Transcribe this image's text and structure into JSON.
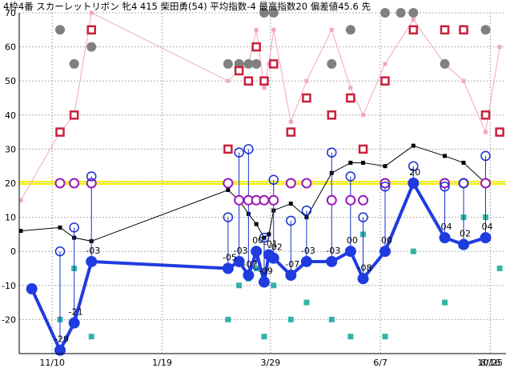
{
  "chart_data": {
    "type": "line",
    "title": "4枠4番 スカーレットリボン 牝4 415 柴田勇(54) 平均指数-4 最高指数20 偏差値45.6 先",
    "xlabel": "",
    "ylabel": "",
    "ylim": [
      -30,
      70
    ],
    "grid": true,
    "y_ticks": [
      "70",
      "60",
      "50",
      "40",
      "30",
      "20",
      "10",
      "0",
      "-10",
      "-20"
    ],
    "x_ticks": [
      "11/10",
      "1/19",
      "3/29",
      "6/7",
      "8/16",
      "10/25"
    ],
    "x_tick_days": [
      0,
      70,
      139,
      209,
      279,
      349
    ],
    "reference_line": 20,
    "main_series": {
      "x": [
        -13,
        5,
        14,
        25,
        112,
        119,
        125,
        130,
        135,
        138,
        141,
        152,
        162,
        178,
        190,
        198,
        212,
        230,
        250,
        262,
        276
      ],
      "y": [
        -11,
        -29,
        -21,
        -3,
        -5,
        -3,
        -7,
        0,
        -9,
        -1,
        -2,
        -7,
        -3,
        -3,
        0,
        -8,
        0,
        20,
        4,
        2,
        4
      ],
      "labels": [
        "",
        "-29",
        "-21",
        "-03",
        "-05",
        "-03",
        "-07",
        "00",
        "-09",
        "-01",
        "-02",
        "-07",
        "-03",
        "-03",
        "00",
        "-08",
        "00",
        "20",
        "04",
        "02",
        "04"
      ]
    },
    "black_series": {
      "x": [
        -20,
        5,
        14,
        25,
        112,
        119,
        125,
        130,
        135,
        138,
        141,
        152,
        162,
        178,
        190,
        198,
        212,
        230,
        250,
        262,
        276
      ],
      "y": [
        6,
        7,
        4,
        3,
        18,
        15,
        11,
        8,
        4,
        5,
        12,
        14,
        10,
        23,
        26,
        26,
        25,
        31,
        28,
        26,
        20
      ]
    },
    "purple_rings": {
      "x": [
        5,
        14,
        25,
        112,
        119,
        125,
        130,
        135,
        141,
        152,
        162,
        178,
        190,
        198,
        212,
        230,
        250,
        262,
        276
      ],
      "y": [
        20,
        20,
        20,
        20,
        15,
        15,
        15,
        15,
        15,
        20,
        20,
        15,
        15,
        15,
        20,
        20,
        20,
        20,
        20
      ]
    },
    "blue_rings": {
      "x": [
        5,
        14,
        25,
        112,
        119,
        125,
        130,
        135,
        141,
        152,
        162,
        178,
        190,
        198,
        212,
        230,
        250,
        262,
        276
      ],
      "y": [
        0,
        7,
        22,
        10,
        29,
        30,
        -4,
        4,
        21,
        9,
        12,
        29,
        22,
        10,
        19,
        25,
        19,
        20,
        28
      ],
      "base": [
        -26,
        -22,
        -4,
        -6,
        -4,
        -8,
        -1,
        -10,
        -3,
        -8,
        -4,
        -4,
        -1,
        -9,
        -1,
        19,
        3,
        1,
        3
      ]
    },
    "gray_dots": {
      "x": [
        5,
        14,
        25,
        112,
        119,
        125,
        130,
        135,
        141,
        178,
        190,
        212,
        222,
        230,
        250,
        262,
        276
      ],
      "y": [
        65,
        55,
        60,
        55,
        55,
        55,
        55,
        70,
        70,
        55,
        65,
        70,
        70,
        70,
        55,
        65,
        65
      ]
    },
    "red_squares": {
      "x": [
        5,
        14,
        25,
        112,
        119,
        125,
        130,
        135,
        141,
        152,
        162,
        178,
        190,
        198,
        212,
        230,
        250,
        262,
        276,
        285
      ],
      "y": [
        35,
        40,
        65,
        30,
        53,
        50,
        60,
        50,
        55,
        35,
        45,
        40,
        45,
        30,
        50,
        65,
        65,
        65,
        40,
        35
      ]
    },
    "pink_series": {
      "x": [
        -20,
        5,
        14,
        25,
        112,
        119,
        125,
        130,
        135,
        138,
        141,
        152,
        162,
        178,
        190,
        198,
        212,
        230,
        250,
        262,
        276,
        285
      ],
      "y": [
        15,
        35,
        40,
        70,
        50,
        53,
        55,
        65,
        48,
        55,
        65,
        38,
        50,
        65,
        48,
        40,
        55,
        68,
        55,
        50,
        35,
        60
      ]
    },
    "teal_squares": {
      "x": [
        5,
        14,
        25,
        112,
        119,
        125,
        130,
        135,
        141,
        152,
        162,
        178,
        190,
        198,
        212,
        230,
        250,
        262,
        276,
        285
      ],
      "y": [
        -20,
        -5,
        -25,
        -20,
        -10,
        -8,
        -5,
        -25,
        -10,
        -20,
        -15,
        -20,
        -25,
        5,
        -25,
        0,
        -15,
        10,
        10,
        -5
      ]
    },
    "colors": {
      "main": "#1f3ce0",
      "rings_blue": "#1a2fd0",
      "rings_purple": "#9a19b8",
      "black": "#000000",
      "gray": "#808080",
      "red": "#cc1f3d",
      "pink": "#f2a6bf",
      "teal": "#33b3a6",
      "reference": "#f2f200",
      "grid": "#b0b0b0"
    }
  }
}
